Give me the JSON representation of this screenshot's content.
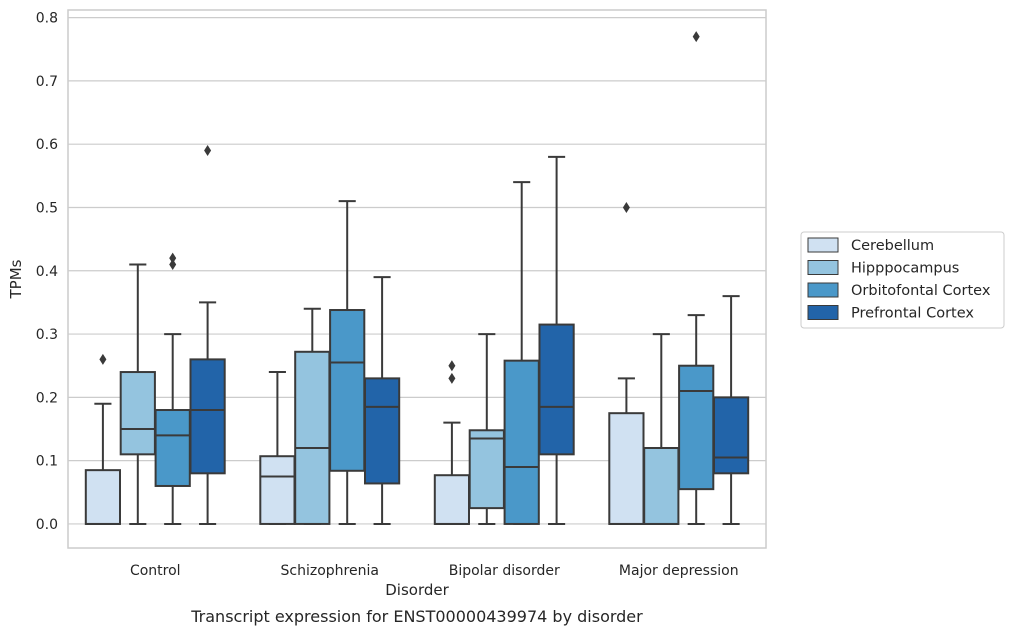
{
  "chart_data": {
    "type": "box",
    "title": "",
    "caption": "Transcript expression for ENST00000439974 by disorder",
    "xlabel": "Disorder",
    "ylabel": "TPMs",
    "ylim": [
      -0.038,
      0.812
    ],
    "yticks": [
      0.0,
      0.1,
      0.2,
      0.3,
      0.4,
      0.5,
      0.6,
      0.7,
      0.8
    ],
    "ytick_labels": [
      "0.0",
      "0.1",
      "0.2",
      "0.3",
      "0.4",
      "0.5",
      "0.6",
      "0.7",
      "0.8"
    ],
    "grid": true,
    "legend_position": "right",
    "categories": [
      "Control",
      "Schizophrenia",
      "Bipolar disorder",
      "Major depression"
    ],
    "series": [
      {
        "name": "Cerebellum",
        "color": "#d0e1f2",
        "boxes": [
          {
            "whisker_low": 0.0,
            "q1": 0.0,
            "median": 0.0,
            "q3": 0.085,
            "whisker_high": 0.19,
            "outliers": [
              0.26
            ]
          },
          {
            "whisker_low": 0.0,
            "q1": 0.0,
            "median": 0.075,
            "q3": 0.107,
            "whisker_high": 0.24,
            "outliers": []
          },
          {
            "whisker_low": 0.0,
            "q1": 0.0,
            "median": 0.0,
            "q3": 0.077,
            "whisker_high": 0.16,
            "outliers": [
              0.23,
              0.25
            ]
          },
          {
            "whisker_low": 0.0,
            "q1": 0.0,
            "median": 0.0,
            "q3": 0.175,
            "whisker_high": 0.23,
            "outliers": [
              0.5
            ]
          }
        ]
      },
      {
        "name": "Hipppocampus",
        "color": "#94c4df",
        "boxes": [
          {
            "whisker_low": 0.0,
            "q1": 0.11,
            "median": 0.15,
            "q3": 0.24,
            "whisker_high": 0.41,
            "outliers": []
          },
          {
            "whisker_low": 0.0,
            "q1": 0.0,
            "median": 0.12,
            "q3": 0.272,
            "whisker_high": 0.34,
            "outliers": []
          },
          {
            "whisker_low": 0.0,
            "q1": 0.025,
            "median": 0.135,
            "q3": 0.148,
            "whisker_high": 0.3,
            "outliers": []
          },
          {
            "whisker_low": 0.0,
            "q1": 0.0,
            "median": 0.0,
            "q3": 0.12,
            "whisker_high": 0.3,
            "outliers": []
          }
        ]
      },
      {
        "name": "Orbitofontal Cortex",
        "color": "#4a98c9",
        "boxes": [
          {
            "whisker_low": 0.0,
            "q1": 0.06,
            "median": 0.14,
            "q3": 0.18,
            "whisker_high": 0.3,
            "outliers": [
              0.41,
              0.42
            ]
          },
          {
            "whisker_low": 0.0,
            "q1": 0.084,
            "median": 0.255,
            "q3": 0.338,
            "whisker_high": 0.51,
            "outliers": []
          },
          {
            "whisker_low": 0.0,
            "q1": 0.0,
            "median": 0.09,
            "q3": 0.258,
            "whisker_high": 0.54,
            "outliers": []
          },
          {
            "whisker_low": 0.0,
            "q1": 0.055,
            "median": 0.21,
            "q3": 0.25,
            "whisker_high": 0.33,
            "outliers": [
              0.77
            ]
          }
        ]
      },
      {
        "name": "Prefrontal Cortex",
        "color": "#2264a9",
        "boxes": [
          {
            "whisker_low": 0.0,
            "q1": 0.08,
            "median": 0.18,
            "q3": 0.26,
            "whisker_high": 0.35,
            "outliers": [
              0.59
            ]
          },
          {
            "whisker_low": 0.0,
            "q1": 0.064,
            "median": 0.185,
            "q3": 0.23,
            "whisker_high": 0.39,
            "outliers": []
          },
          {
            "whisker_low": 0.0,
            "q1": 0.11,
            "median": 0.185,
            "q3": 0.315,
            "whisker_high": 0.58,
            "outliers": []
          },
          {
            "whisker_low": 0.0,
            "q1": 0.08,
            "median": 0.105,
            "q3": 0.2,
            "whisker_high": 0.36,
            "outliers": []
          }
        ]
      }
    ]
  }
}
